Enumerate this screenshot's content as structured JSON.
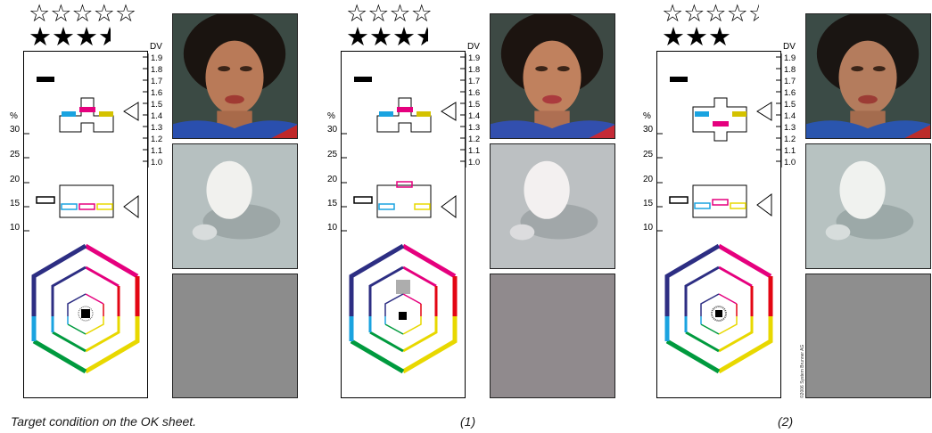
{
  "panels": [
    {
      "id": "target",
      "stars_outline": "☆☆☆☆☆",
      "stars_filled": "★★★",
      "stars_filled_half": true,
      "caption": "Target condition on the OK sheet.",
      "gray_patch_color": "#8c8c8c"
    },
    {
      "id": "variant-1",
      "stars_outline": "☆☆☆☆",
      "stars_filled": "★★★",
      "stars_filled_half": true,
      "caption": "(1)",
      "gray_patch_color": "#908a8d"
    },
    {
      "id": "variant-2",
      "stars_outline": "☆☆☆☆",
      "stars_outline_half": true,
      "stars_filled": "★★★",
      "stars_filled_half": false,
      "caption": "(2)",
      "gray_patch_color": "#8e8e8e"
    }
  ],
  "dv_scale": {
    "unit": "DV",
    "labels": [
      "1.9",
      "1.8",
      "1.7",
      "1.6",
      "1.5",
      "1.4",
      "1.3",
      "1.2",
      "1.1",
      "1.0"
    ]
  },
  "percent_scale": {
    "unit": "%",
    "labels": [
      "30",
      "25",
      "20",
      "15",
      "10"
    ]
  },
  "copyright": "©2006 System Brunner AG",
  "colors": {
    "cyan": "#1aa3e0",
    "magenta": "#e5007e",
    "yellow": "#e8d800",
    "black": "#000000",
    "red": "#e30613",
    "green": "#009a3e",
    "blue": "#2d2e83"
  }
}
